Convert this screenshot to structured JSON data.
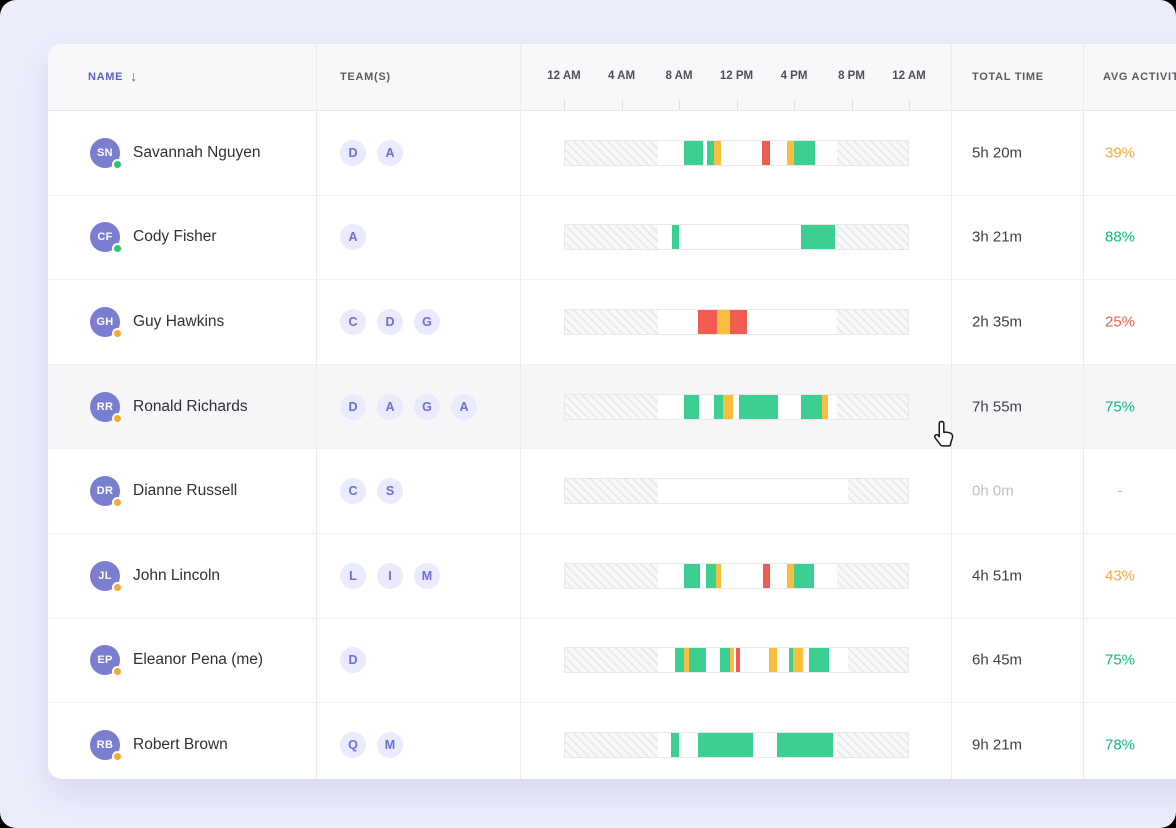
{
  "table": {
    "columns": {
      "name": "NAME",
      "teams": "TEAM(S)",
      "total_time": "TOTAL TIME",
      "avg_activity": "AVG ACTIVITY"
    },
    "sort_icon": "↓",
    "time_ticks": [
      "12 AM",
      "4 AM",
      "8 AM",
      "12 PM",
      "4 PM",
      "8 PM",
      "12 AM"
    ]
  },
  "colors": {
    "accent_indigo": "#5A5FC9",
    "bar_green": "#3DCE91",
    "bar_yellow": "#F7BE3F",
    "bar_red": "#F15B50",
    "online_green": "#2BC46F",
    "idle_orange": "#F5A93B",
    "pct_green": "#10B981",
    "pct_orange": "#F5A93B",
    "pct_red": "#F15B50",
    "muted": "#BCBFC6",
    "avatar_bg": "#7A7ED1",
    "badge_bg": "#E9EAFB",
    "badge_text": "#6B6FD1",
    "page_bg": "#ECEDFB"
  },
  "rows": [
    {
      "initials": "SN",
      "name": "Savannah Nguyen",
      "status_color": "#2BC46F",
      "teams": [
        "D",
        "A"
      ],
      "total_time": "5h 20m",
      "avg_activity": "39%",
      "percent_color": "#F5A93B",
      "muted": false,
      "hovered": false,
      "timeline": [
        {
          "s": 0,
          "w": 27,
          "c": "hatch"
        },
        {
          "s": 34.8,
          "w": 5.4,
          "c": "green"
        },
        {
          "s": 41.4,
          "w": 1.9,
          "c": "green"
        },
        {
          "s": 43.3,
          "w": 2.2,
          "c": "yellow"
        },
        {
          "s": 57.3,
          "w": 2.6,
          "c": "red"
        },
        {
          "s": 64.6,
          "w": 2.2,
          "c": "yellow"
        },
        {
          "s": 66.8,
          "w": 6.0,
          "c": "green"
        },
        {
          "s": 79.3,
          "w": 20.7,
          "c": "hatch"
        }
      ]
    },
    {
      "initials": "CF",
      "name": "Cody Fisher",
      "status_color": "#2BC46F",
      "teams": [
        "A"
      ],
      "total_time": "3h 21m",
      "avg_activity": "88%",
      "percent_color": "#10B981",
      "muted": false,
      "hovered": false,
      "timeline": [
        {
          "s": 0,
          "w": 27,
          "c": "hatch"
        },
        {
          "s": 31.2,
          "w": 2.1,
          "c": "green"
        },
        {
          "s": 68.7,
          "w": 9.9,
          "c": "green"
        },
        {
          "s": 79.3,
          "w": 20.7,
          "c": "hatch"
        }
      ]
    },
    {
      "initials": "GH",
      "name": "Guy Hawkins",
      "status_color": "#F5A93B",
      "teams": [
        "C",
        "D",
        "G"
      ],
      "total_time": "2h 35m",
      "avg_activity": "25%",
      "percent_color": "#F15B50",
      "muted": false,
      "hovered": false,
      "timeline": [
        {
          "s": 0,
          "w": 27,
          "c": "hatch"
        },
        {
          "s": 38.9,
          "w": 5.4,
          "c": "red"
        },
        {
          "s": 44.3,
          "w": 3.8,
          "c": "yellow"
        },
        {
          "s": 48.1,
          "w": 4.9,
          "c": "red"
        },
        {
          "s": 79.3,
          "w": 20.7,
          "c": "hatch"
        }
      ]
    },
    {
      "initials": "RR",
      "name": "Ronald Richards",
      "status_color": "#F5A93B",
      "teams": [
        "D",
        "A",
        "G",
        "A"
      ],
      "total_time": "7h 55m",
      "avg_activity": "75%",
      "percent_color": "#10B981",
      "muted": false,
      "hovered": true,
      "timeline": [
        {
          "s": 0,
          "w": 27,
          "c": "hatch"
        },
        {
          "s": 34.8,
          "w": 4.4,
          "c": "green"
        },
        {
          "s": 43.3,
          "w": 2.7,
          "c": "green"
        },
        {
          "s": 46.0,
          "w": 3.1,
          "c": "yellow"
        },
        {
          "s": 50.8,
          "w": 11.3,
          "c": "green"
        },
        {
          "s": 68.9,
          "w": 6.1,
          "c": "green"
        },
        {
          "s": 75.0,
          "w": 1.6,
          "c": "yellow"
        },
        {
          "s": 79.3,
          "w": 20.7,
          "c": "hatch"
        }
      ]
    },
    {
      "initials": "DR",
      "name": "Dianne Russell",
      "status_color": "#F5A93B",
      "teams": [
        "C",
        "S"
      ],
      "total_time": "0h 0m",
      "avg_activity": "-",
      "percent_color": "#BCBFC6",
      "muted": true,
      "hovered": false,
      "timeline": [
        {
          "s": 0,
          "w": 27,
          "c": "hatch"
        },
        {
          "s": 82.4,
          "w": 17.6,
          "c": "hatch"
        }
      ]
    },
    {
      "initials": "JL",
      "name": "John Lincoln",
      "status_color": "#F5A93B",
      "teams": [
        "L",
        "I",
        "M"
      ],
      "total_time": "4h 51m",
      "avg_activity": "43%",
      "percent_color": "#F5A93B",
      "muted": false,
      "hovered": false,
      "timeline": [
        {
          "s": 0,
          "w": 27,
          "c": "hatch"
        },
        {
          "s": 34.8,
          "w": 4.6,
          "c": "green"
        },
        {
          "s": 41.2,
          "w": 2.9,
          "c": "green"
        },
        {
          "s": 44.1,
          "w": 1.4,
          "c": "yellow"
        },
        {
          "s": 57.6,
          "w": 2.1,
          "c": "red"
        },
        {
          "s": 64.6,
          "w": 2.2,
          "c": "yellow"
        },
        {
          "s": 66.8,
          "w": 5.7,
          "c": "green"
        },
        {
          "s": 79.3,
          "w": 20.7,
          "c": "hatch"
        }
      ]
    },
    {
      "initials": "EP",
      "name": "Eleanor Pena (me)",
      "status_color": "#F5A93B",
      "teams": [
        "D"
      ],
      "total_time": "6h 45m",
      "avg_activity": "75%",
      "percent_color": "#10B981",
      "muted": false,
      "hovered": false,
      "timeline": [
        {
          "s": 0,
          "w": 27.2,
          "c": "hatch"
        },
        {
          "s": 32.2,
          "w": 2.6,
          "c": "green"
        },
        {
          "s": 34.8,
          "w": 1.4,
          "c": "yellow"
        },
        {
          "s": 36.2,
          "w": 4.9,
          "c": "green"
        },
        {
          "s": 45.2,
          "w": 2.9,
          "c": "green"
        },
        {
          "s": 48.1,
          "w": 1.3,
          "c": "yellow"
        },
        {
          "s": 49.9,
          "w": 1.1,
          "c": "red"
        },
        {
          "s": 59.5,
          "w": 2.3,
          "c": "yellow"
        },
        {
          "s": 65.3,
          "w": 1.2,
          "c": "green"
        },
        {
          "s": 66.5,
          "w": 2.9,
          "c": "yellow"
        },
        {
          "s": 71.1,
          "w": 6.0,
          "c": "green"
        },
        {
          "s": 82.4,
          "w": 17.6,
          "c": "hatch"
        }
      ]
    },
    {
      "initials": "RB",
      "name": "Robert Brown",
      "status_color": "#F5A93B",
      "teams": [
        "Q",
        "M"
      ],
      "total_time": "9h 21m",
      "avg_activity": "78%",
      "percent_color": "#10B981",
      "muted": false,
      "hovered": false,
      "timeline": [
        {
          "s": 0,
          "w": 27,
          "c": "hatch"
        },
        {
          "s": 30.9,
          "w": 2.4,
          "c": "green"
        },
        {
          "s": 38.9,
          "w": 15.8,
          "c": "green"
        },
        {
          "s": 61.9,
          "w": 16.2,
          "c": "green"
        },
        {
          "s": 79.3,
          "w": 20.7,
          "c": "hatch"
        }
      ]
    }
  ]
}
